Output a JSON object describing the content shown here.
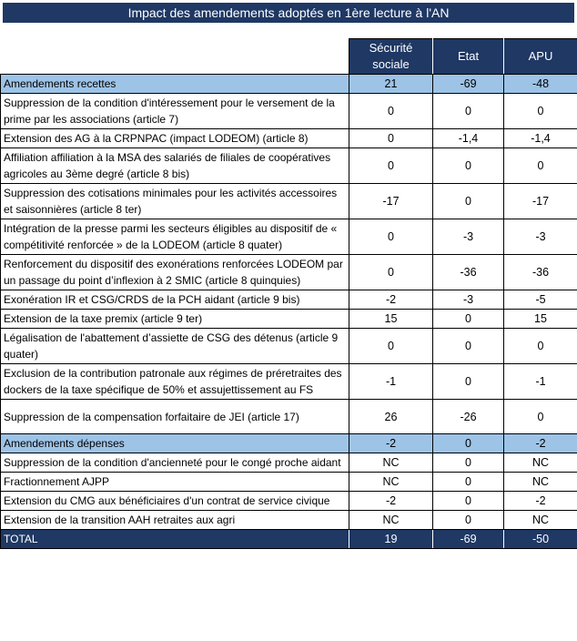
{
  "title": "Impact des amendements adoptés en 1ère lecture à l'AN",
  "colors": {
    "navy": "#1f3864",
    "light_blue": "#9dc3e6",
    "border": "#000000",
    "header_text": "#ffffff",
    "text": "#000000"
  },
  "table": {
    "columns": [
      "Sécurité sociale",
      "Etat",
      "APU"
    ],
    "rows": [
      {
        "type": "section",
        "label": "Amendements recettes",
        "values": [
          "21",
          "-69",
          "-48"
        ]
      },
      {
        "type": "item",
        "label": "Suppression de la condition d'intéressement pour le versement de la prime par les associations (article 7)",
        "values": [
          "0",
          "0",
          "0"
        ]
      },
      {
        "type": "item",
        "label": "Extension des AG à la CRPNPAC (impact LODEOM) (article 8)",
        "values": [
          "0",
          "-1,4",
          "-1,4"
        ]
      },
      {
        "type": "item",
        "label": "Affiliation affiliation à la MSA des salariés de filiales de coopératives agricoles au 3ème degré (article 8 bis)",
        "values": [
          "0",
          "0",
          "0"
        ]
      },
      {
        "type": "item",
        "label": "Suppression des cotisations minimales pour les activités accessoires et saisonnières (article 8 ter)",
        "values": [
          "-17",
          "0",
          "-17"
        ]
      },
      {
        "type": "item",
        "label": "Intégration de la presse parmi les secteurs éligibles au dispositif de « compétitivité renforcée » de la LODEOM (article 8 quater)",
        "values": [
          "0",
          "-3",
          "-3"
        ]
      },
      {
        "type": "item",
        "label": "Renforcement du dispositif des exonérations renforcées LODEOM par un passage du point d’inflexion à 2 SMIC (article 8 quinquies)",
        "values": [
          "0",
          "-36",
          "-36"
        ]
      },
      {
        "type": "item",
        "label": "Exonération IR et CSG/CRDS de la PCH aidant (article 9 bis)",
        "values": [
          "-2",
          "-3",
          "-5"
        ]
      },
      {
        "type": "item",
        "label": "Extension de la taxe premix (article 9 ter)",
        "values": [
          "15",
          "0",
          "15"
        ]
      },
      {
        "type": "item",
        "label": "Légalisation de l'abattement d’assiette de CSG des détenus (article 9 quater)",
        "values": [
          "0",
          "0",
          "0"
        ]
      },
      {
        "type": "item",
        "label": "Exclusion de la contribution patronale aux régimes de préretraites des dockers de la taxe spécifique de 50% et assujettissement au FS",
        "values": [
          "-1",
          "0",
          "-1"
        ]
      },
      {
        "type": "item",
        "tall": true,
        "label": "Suppression de la compensation forfaitaire de JEI (article 17)",
        "values": [
          "26",
          "-26",
          "0"
        ]
      },
      {
        "type": "section",
        "label": "Amendements dépenses",
        "values": [
          "-2",
          "0",
          "-2"
        ]
      },
      {
        "type": "item",
        "label": "Suppression de la condition d'ancienneté pour le congé proche aidant",
        "values": [
          "NC",
          "0",
          "NC"
        ]
      },
      {
        "type": "item",
        "label": "Fractionnement AJPP",
        "values": [
          "NC",
          "0",
          "NC"
        ]
      },
      {
        "type": "item",
        "label": "Extension du CMG aux bénéficiaires d'un contrat de service civique",
        "values": [
          "-2",
          "0",
          "-2"
        ]
      },
      {
        "type": "item",
        "label": "Extension de la transition AAH retraites aux agri",
        "values": [
          "NC",
          "0",
          "NC"
        ]
      },
      {
        "type": "total",
        "label": "TOTAL",
        "values": [
          "19",
          "-69",
          "-50"
        ]
      }
    ]
  }
}
